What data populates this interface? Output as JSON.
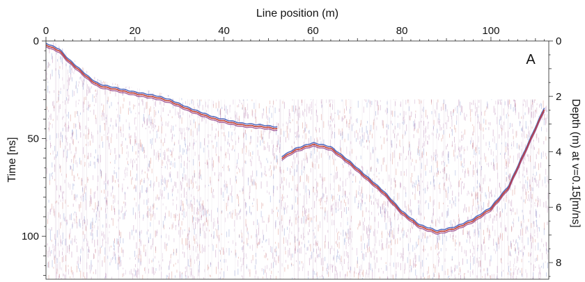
{
  "chart_data": {
    "type": "heatmap",
    "subtype": "ground-penetrating radar radargram",
    "panel_label": "A",
    "xlabel": "Line position (m)",
    "ylabel_left": "Time [ns]",
    "ylabel_right": "Depth (m) at v=0.15[m/ns]",
    "x_axis_position": "top",
    "xlim": [
      0,
      113
    ],
    "ylim_time_ns": [
      0,
      122
    ],
    "ylim_depth_m": [
      0,
      8.6
    ],
    "x_ticks": [
      "0",
      "20",
      "40",
      "60",
      "80",
      "100"
    ],
    "x_tick_values": [
      0,
      20,
      40,
      60,
      80,
      100
    ],
    "y_left_ticks": [
      "0",
      "50",
      "100"
    ],
    "y_left_tick_values": [
      0,
      50,
      100
    ],
    "y_right_ticks": [
      "0",
      "2",
      "4",
      "6",
      "8"
    ],
    "y_right_tick_values": [
      0,
      2,
      4,
      6,
      8
    ],
    "colors": {
      "positive": "#c0392b",
      "negative": "#3a55b5",
      "mid": "#8a2f7a",
      "background": "#ffffff"
    },
    "reflectors": [
      {
        "name": "upper",
        "x": [
          0,
          1,
          3,
          5,
          8,
          10,
          12,
          16,
          20,
          25,
          28,
          32,
          38,
          44,
          49,
          52
        ],
        "y": [
          2,
          3,
          5,
          10,
          16,
          20,
          23,
          25,
          27,
          29,
          31,
          35,
          40,
          43,
          44,
          45
        ]
      },
      {
        "name": "lower",
        "x": [
          53,
          56,
          60,
          64,
          68,
          72,
          76,
          80,
          84,
          88,
          92,
          96,
          100,
          104,
          108,
          112
        ],
        "y": [
          60,
          56,
          53,
          55,
          62,
          70,
          78,
          88,
          95,
          98,
          96,
          92,
          86,
          75,
          55,
          35
        ]
      }
    ],
    "blanked_zone": {
      "x": [
        0,
        1,
        3,
        5,
        8,
        10,
        12,
        16,
        20,
        25,
        28,
        32,
        113
      ],
      "y": [
        0,
        0,
        2,
        7,
        13,
        17,
        20,
        22,
        24,
        26,
        28,
        30,
        30
      ]
    },
    "grid": false,
    "legend": "none"
  }
}
